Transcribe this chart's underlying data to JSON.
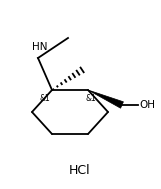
{
  "background_color": "#ffffff",
  "line_color": "#000000",
  "text_color": "#000000",
  "fig_width": 1.61,
  "fig_height": 1.89,
  "dpi": 100,
  "hcl_text": "HCl",
  "hcl_fontsize": 9
}
